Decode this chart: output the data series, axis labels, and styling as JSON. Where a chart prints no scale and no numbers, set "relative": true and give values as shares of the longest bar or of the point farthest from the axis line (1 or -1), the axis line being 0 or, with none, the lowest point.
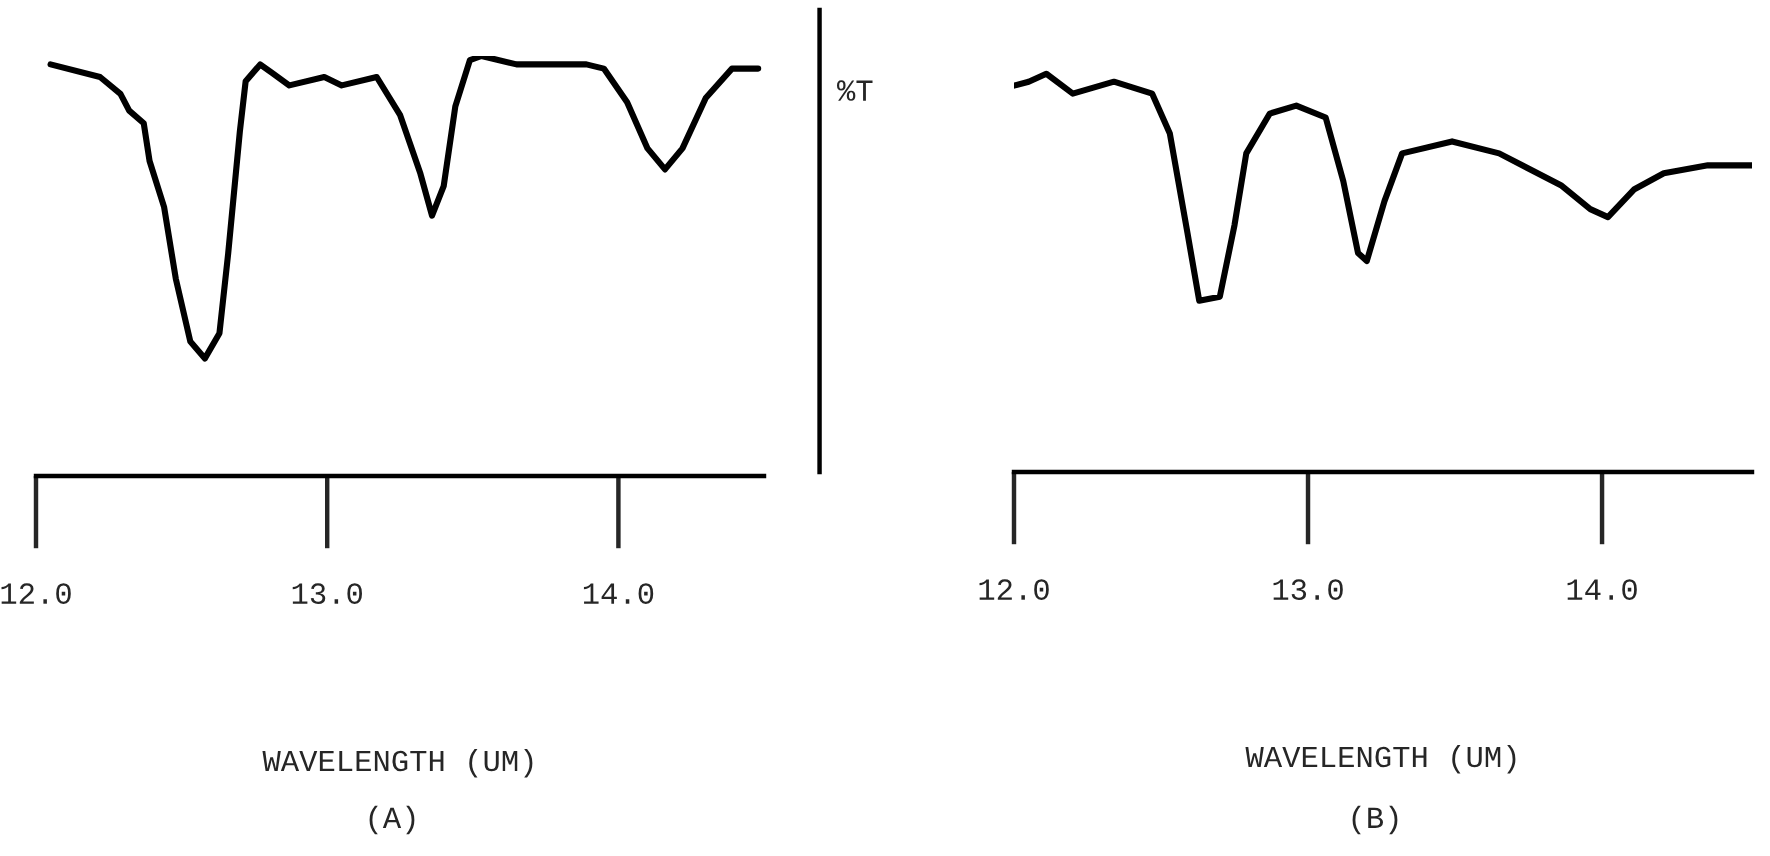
{
  "chart_data": [
    {
      "type": "line",
      "title": "(A)",
      "xlabel": "WAVELENGTH (UM)",
      "relative": true,
      "color": "#000000",
      "x": [
        12.05,
        12.22,
        12.29,
        12.32,
        12.37,
        12.39,
        12.44,
        12.48,
        12.53,
        12.58,
        12.63,
        12.66,
        12.7,
        12.72,
        12.77,
        12.81,
        12.87,
        12.99,
        13.05,
        13.17,
        13.25,
        13.32,
        13.36,
        13.4,
        13.44,
        13.49,
        13.53,
        13.65,
        13.89,
        13.95,
        14.03,
        14.1,
        14.16,
        14.22,
        14.3,
        14.39,
        14.48
      ],
      "values": [
        0.98,
        0.95,
        0.91,
        0.87,
        0.84,
        0.75,
        0.64,
        0.47,
        0.32,
        0.28,
        0.34,
        0.53,
        0.82,
        0.94,
        0.98,
        0.96,
        0.93,
        0.95,
        0.93,
        0.95,
        0.86,
        0.72,
        0.62,
        0.69,
        0.88,
        0.99,
        1.0,
        0.98,
        0.98,
        0.97,
        0.89,
        0.78,
        0.73,
        0.78,
        0.9,
        0.97,
        0.97
      ],
      "xlim": [
        12.0,
        14.5
      ],
      "xticks": [
        {
          "value": 12,
          "label": "12.0"
        },
        {
          "value": 13,
          "label": "13.0"
        },
        {
          "value": 14,
          "label": "14.0"
        }
      ],
      "tick_labels": "x",
      "grid": false,
      "legend": false
    },
    {
      "type": "line",
      "title": "(B)",
      "xlabel": "WAVELENGTH (UM)",
      "ylabel": "%T",
      "relative": true,
      "color": "#000000",
      "x": [
        12.0,
        12.05,
        12.11,
        12.2,
        12.34,
        12.47,
        12.53,
        12.59,
        12.63,
        12.7,
        12.75,
        12.79,
        12.87,
        12.96,
        13.06,
        13.12,
        13.17,
        13.2,
        13.26,
        13.32,
        13.49,
        13.65,
        13.86,
        13.96,
        14.02,
        14.11,
        14.21,
        14.36,
        14.51
      ],
      "values": [
        0.97,
        0.98,
        1.0,
        0.95,
        0.98,
        0.95,
        0.85,
        0.6,
        0.43,
        0.44,
        0.62,
        0.8,
        0.9,
        0.92,
        0.89,
        0.73,
        0.55,
        0.53,
        0.68,
        0.8,
        0.83,
        0.8,
        0.72,
        0.66,
        0.64,
        0.71,
        0.75,
        0.77,
        0.77
      ],
      "xlim": [
        12.0,
        14.51
      ],
      "xticks": [
        {
          "value": 12,
          "label": "12.0"
        },
        {
          "value": 13,
          "label": "13.0"
        },
        {
          "value": 14,
          "label": "14.0"
        }
      ],
      "tick_labels": "x",
      "grid": false,
      "legend": false
    }
  ]
}
